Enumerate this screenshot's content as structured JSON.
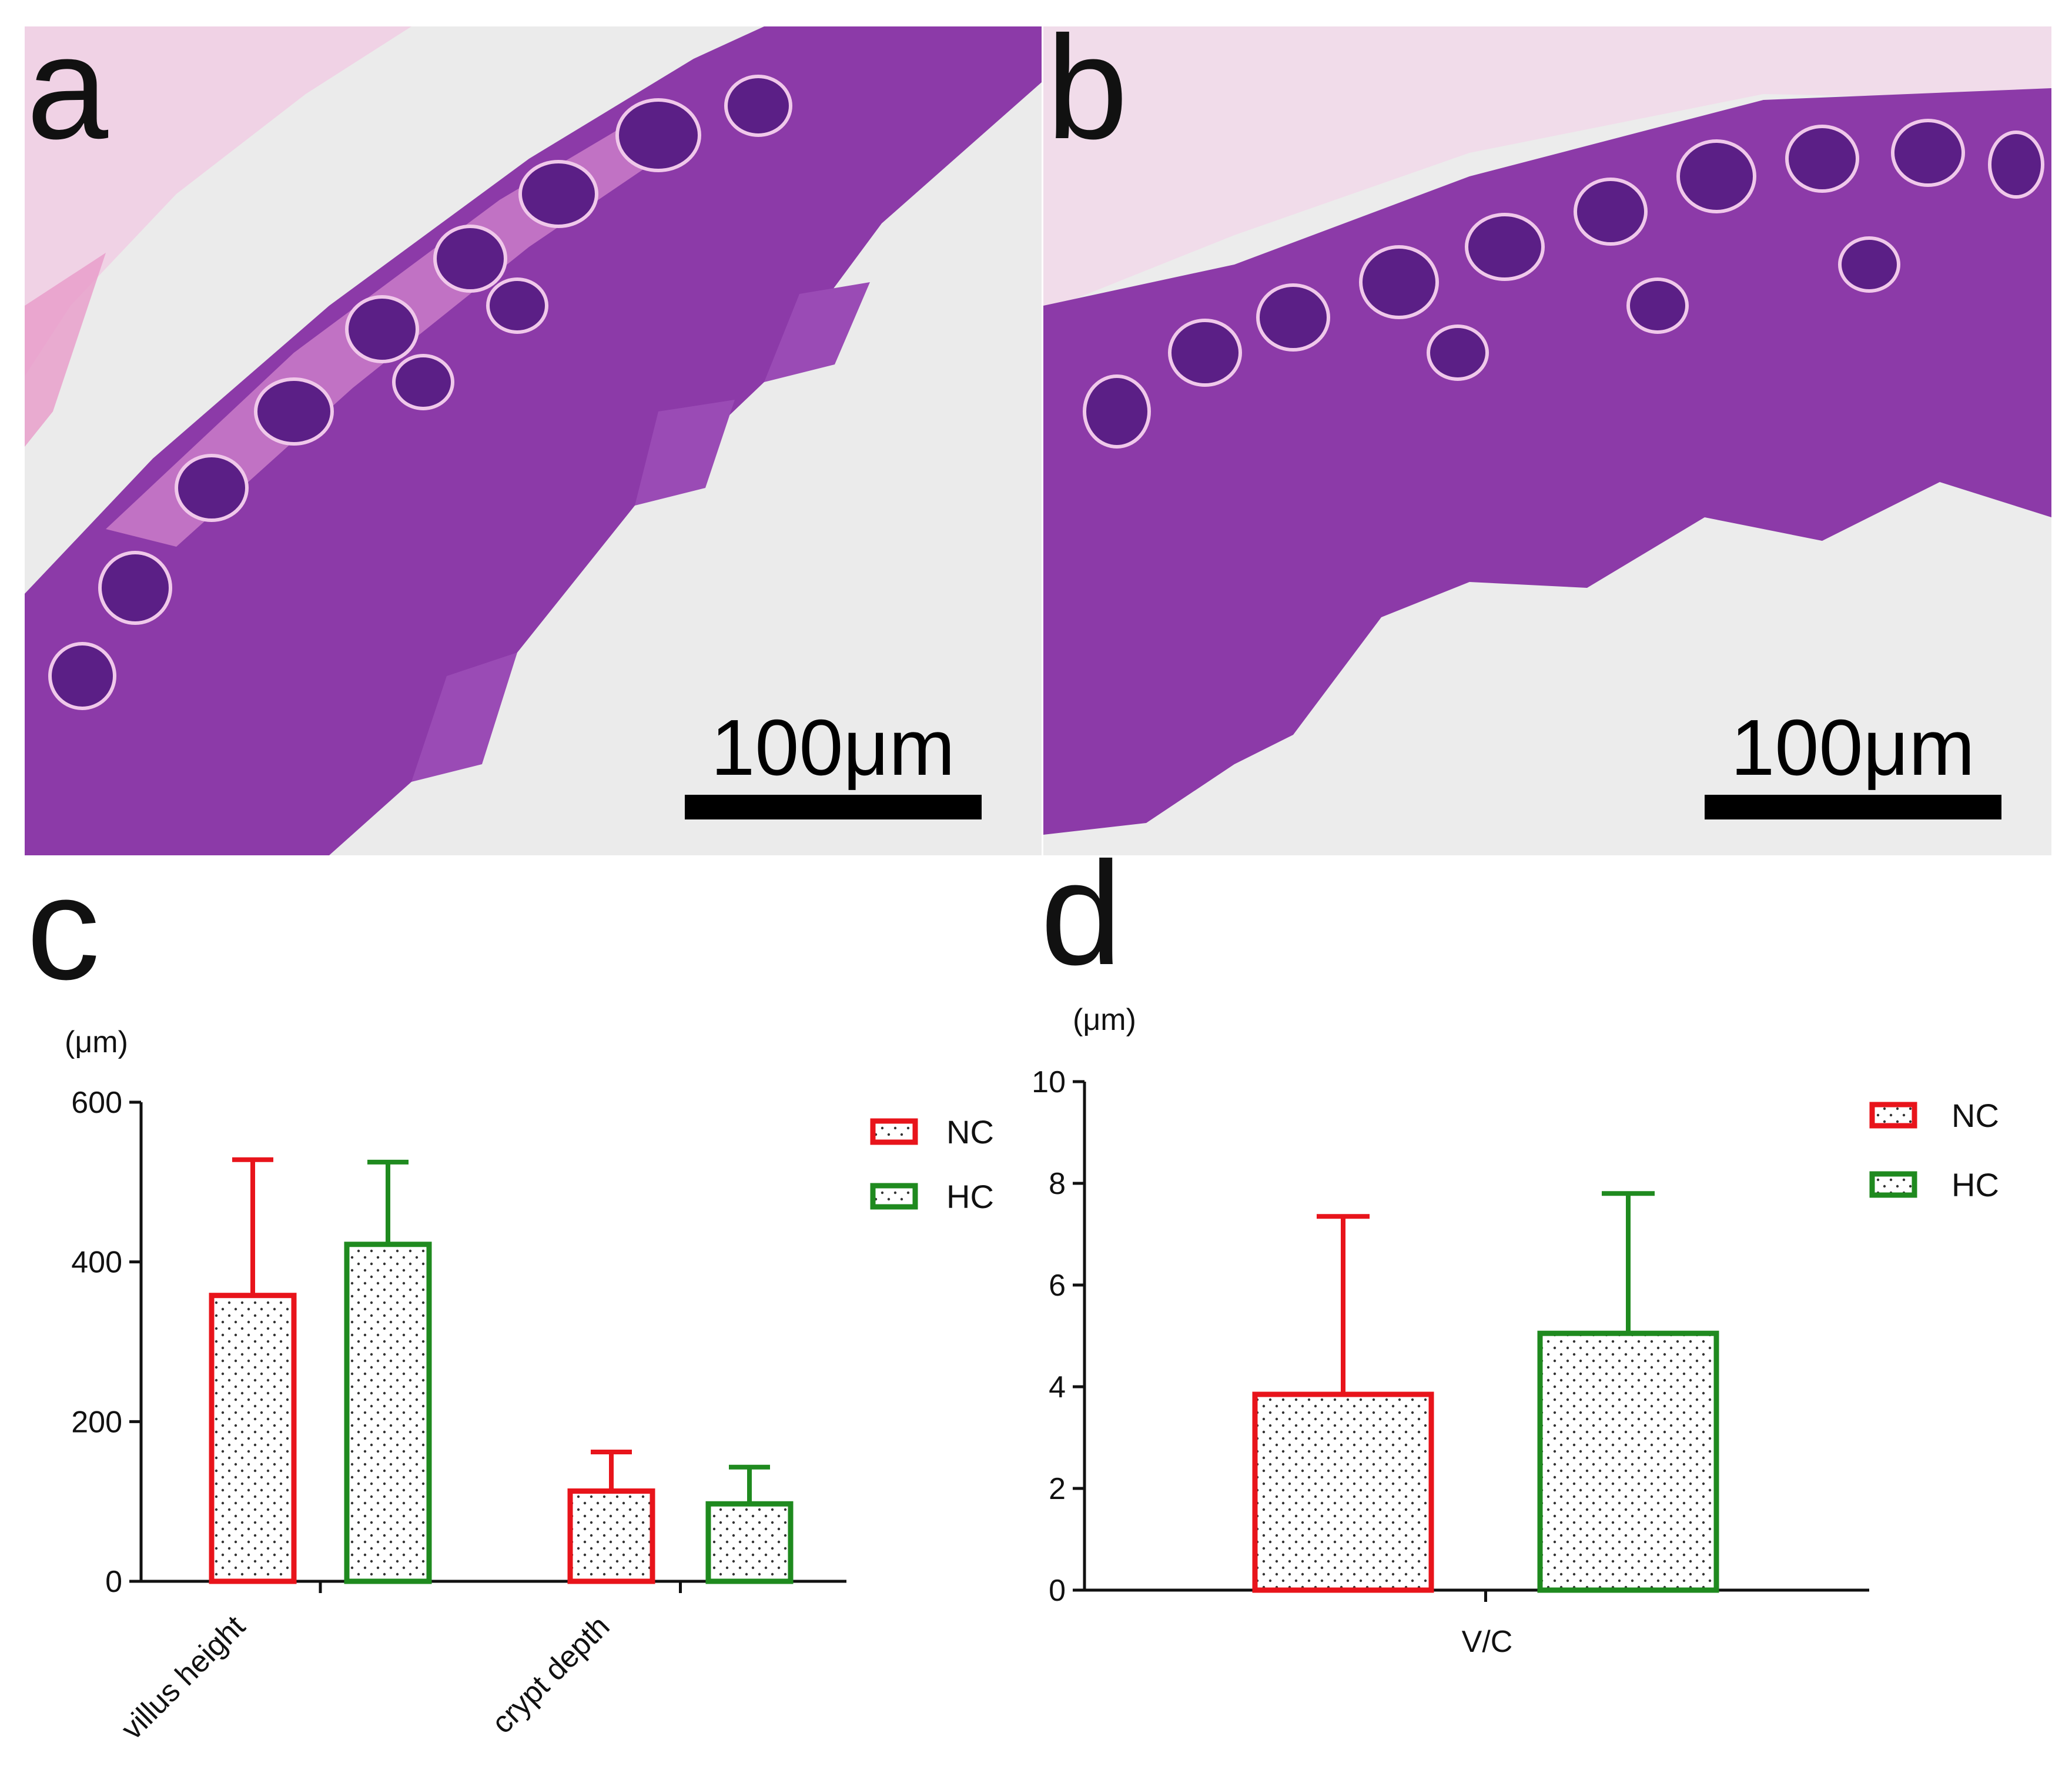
{
  "panels": {
    "a": {
      "letter": "a",
      "scale_bar_label": "100μm"
    },
    "b": {
      "letter": "b",
      "scale_bar_label": "100μm"
    },
    "c": {
      "letter": "c"
    },
    "d": {
      "letter": "d"
    }
  },
  "colors": {
    "NC": "#e8141b",
    "HC": "#1f8a1f",
    "tissue_purple": "#8a3aa6",
    "tissue_pink": "#e8a8d8",
    "background_slide": "#ececec"
  },
  "chart_data": [
    {
      "panel": "c",
      "type": "bar",
      "unit_label": "(μm)",
      "categories": [
        "villus height",
        "crypt depth"
      ],
      "series": [
        {
          "name": "NC",
          "values": [
            358,
            113
          ],
          "error_upper": [
            528,
            162
          ]
        },
        {
          "name": "HC",
          "values": [
            422,
            97
          ],
          "error_upper": [
            525,
            143
          ]
        }
      ],
      "ylim": [
        0,
        600
      ],
      "yticks": [
        "0",
        "200",
        "400",
        "600"
      ],
      "legend": "top-right",
      "bar_pattern": "dotted",
      "grid": false
    },
    {
      "panel": "d",
      "type": "bar",
      "unit_label": "(μm)",
      "categories": [
        "V/C"
      ],
      "series": [
        {
          "name": "NC",
          "values": [
            3.85
          ],
          "error_upper": [
            7.35
          ]
        },
        {
          "name": "HC",
          "values": [
            5.05
          ],
          "error_upper": [
            7.8
          ]
        }
      ],
      "ylim": [
        0,
        10
      ],
      "yticks": [
        "0",
        "2",
        "4",
        "6",
        "8",
        "10"
      ],
      "legend": "top-right",
      "bar_pattern": "dotted",
      "grid": false
    }
  ]
}
